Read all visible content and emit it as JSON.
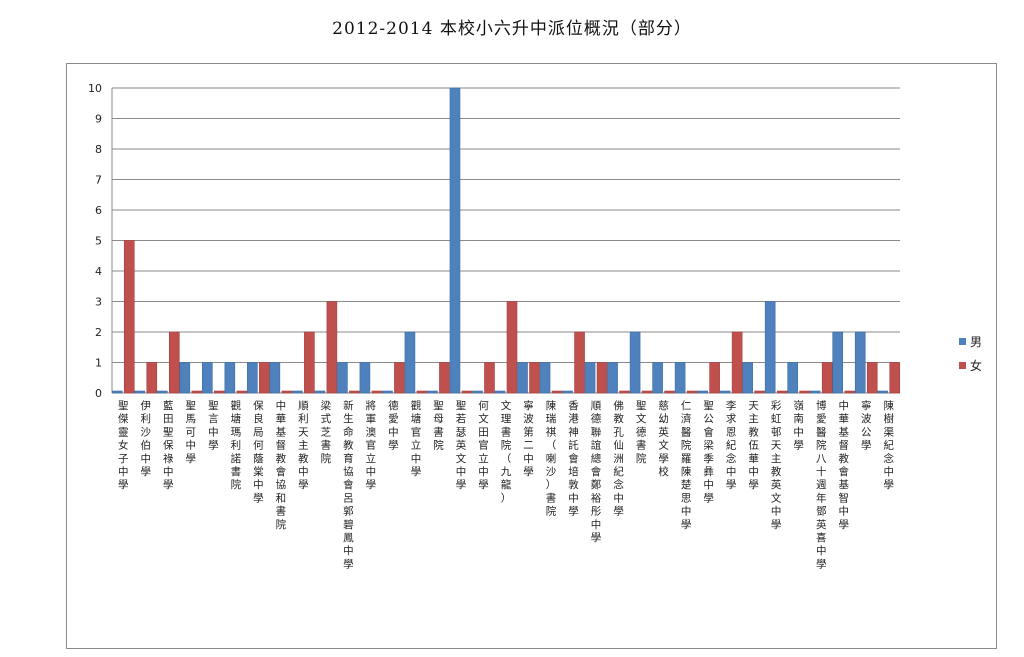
{
  "title": "2012-2014 本校小六升中派位概況（部分）",
  "chart_data": {
    "type": "bar",
    "title": "2012-2014 本校小六升中派位概況（部分）",
    "xlabel": "",
    "ylabel": "",
    "ylim": [
      0,
      10
    ],
    "yticks": [
      "0",
      "1",
      "2",
      "3",
      "4",
      "5",
      "6",
      "7",
      "8",
      "9",
      "10"
    ],
    "grid": true,
    "legend_position": "right",
    "categories": [
      "聖傑靈女子中學",
      "伊利沙伯中學",
      "藍田聖保祿中學",
      "聖馬可中學",
      "聖言中學",
      "觀塘瑪利諾書院",
      "保良局何蔭棠中學",
      "中華基督教會協和書院",
      "順利天主教中學",
      "梁式芝書院",
      "新生命教育協會呂郭碧鳳中學",
      "將軍澳官立中學",
      "德愛中學",
      "觀塘官立中學",
      "聖母書院",
      "聖若瑟英文中學",
      "何文田官立中學",
      "文理書院（九龍）",
      "寧波第二中學",
      "陳瑞祺（喇沙）書院",
      "香港神託會培敦中學",
      "順德聯誼總會鄭裕彤中學",
      "佛教孔仙洲紀念中學",
      "聖文德書院",
      "慈幼英文學校",
      "仁濟醫院羅陳楚思中學",
      "聖公會梁季彝中學",
      "李求恩紀念中學",
      "天主教伍華中學",
      "彩虹邨天主教英文中學",
      "嶺南中學",
      "博愛醫院八十週年鄧英喜中學",
      "中華基督教會基智中學",
      "寧波公學",
      "陳樹渠紀念中學"
    ],
    "series": [
      {
        "name": "男",
        "color": "#4f81bd",
        "values": [
          0,
          0,
          0,
          1,
          1,
          1,
          1,
          1,
          0,
          0,
          1,
          1,
          0,
          2,
          0,
          10,
          0,
          0,
          1,
          1,
          0,
          1,
          1,
          2,
          1,
          1,
          0,
          0,
          1,
          3,
          1,
          0,
          2,
          2,
          0
        ]
      },
      {
        "name": "女",
        "color": "#c0504d",
        "values": [
          5,
          1,
          2,
          0,
          0,
          0,
          1,
          0,
          2,
          3,
          0,
          0,
          1,
          0,
          1,
          0,
          1,
          3,
          1,
          0,
          2,
          1,
          0,
          0,
          0,
          0,
          1,
          2,
          0,
          0,
          0,
          1,
          0,
          1,
          1
        ]
      }
    ]
  }
}
